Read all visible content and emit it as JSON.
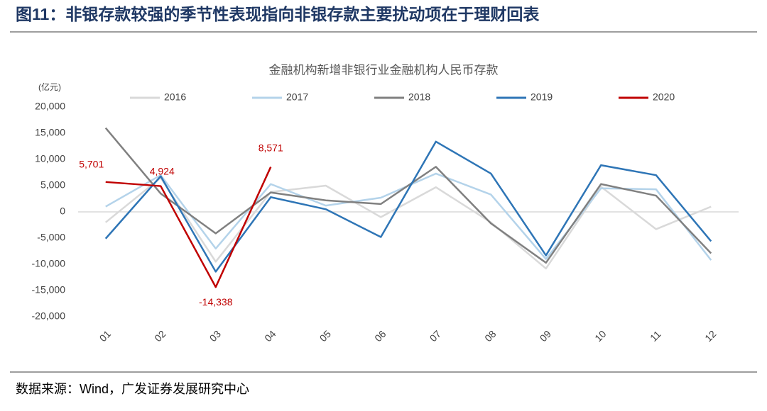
{
  "figure_title": "图11：非银存款较强的季节性表现指向非银存款主要扰动项在于理财回表",
  "source": "数据来源：Wind，广发证券发展研究中心",
  "chart_data": {
    "type": "line",
    "title": "金融机构新增非银行业金融机构人民币存款",
    "y_label": "(亿元)",
    "categories": [
      "01",
      "02",
      "03",
      "04",
      "05",
      "06",
      "07",
      "08",
      "09",
      "10",
      "11",
      "12"
    ],
    "ylim": [
      -20000,
      20000
    ],
    "yticks": [
      {
        "value": -20000,
        "label": "-20,000"
      },
      {
        "value": -15000,
        "label": "-15,000"
      },
      {
        "value": -10000,
        "label": "-10,000"
      },
      {
        "value": -5000,
        "label": "-5,000"
      },
      0,
      {
        "value": 5000,
        "label": "5,000"
      },
      {
        "value": 10000,
        "label": "10,000"
      },
      {
        "value": 15000,
        "label": "15,000"
      },
      {
        "value": 20000,
        "label": "20,000"
      }
    ],
    "grid": false,
    "legend": "top",
    "series": [
      {
        "name": "2016",
        "color": "#d9d9d9",
        "values": [
          -2000,
          6500,
          -9500,
          3800,
          5000,
          -1000,
          4700,
          -2000,
          -10800,
          4800,
          -3300,
          1000
        ]
      },
      {
        "name": "2017",
        "color": "#b4d3ea",
        "values": [
          1000,
          7000,
          -7000,
          5300,
          1200,
          2700,
          7300,
          3300,
          -9000,
          4500,
          4300,
          -9200
        ]
      },
      {
        "name": "2018",
        "color": "#808080",
        "values": [
          16000,
          3500,
          -4100,
          3700,
          2200,
          1500,
          8600,
          -2200,
          -9700,
          5300,
          3100,
          -7900
        ]
      },
      {
        "name": "2019",
        "color": "#2e75b6",
        "values": [
          -5100,
          6800,
          -11400,
          2800,
          500,
          -4800,
          13400,
          7300,
          -8300,
          8900,
          7000,
          -5600
        ]
      },
      {
        "name": "2020",
        "color": "#c00000",
        "values": [
          5701,
          4924,
          -14338,
          8571,
          null,
          null,
          null,
          null,
          null,
          null,
          null,
          null
        ],
        "value_labels": [
          "5,701",
          "4,924",
          "-14,338",
          "8,571",
          null,
          null,
          null,
          null,
          null,
          null,
          null,
          null
        ]
      }
    ]
  }
}
